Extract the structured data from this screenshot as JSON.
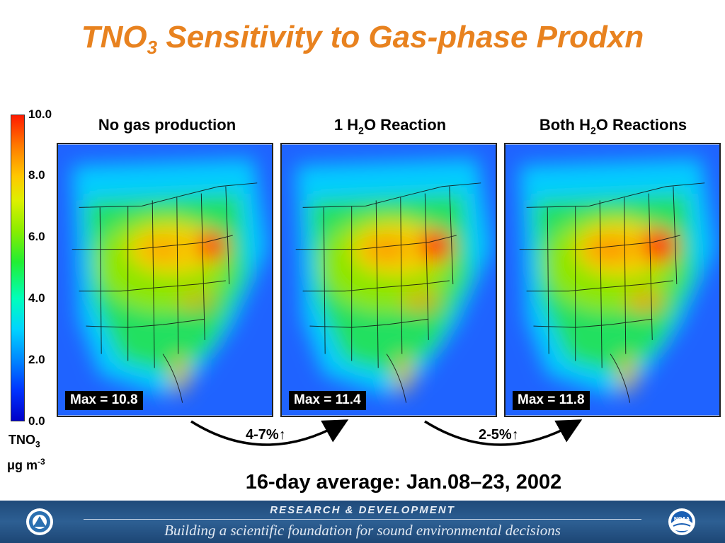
{
  "slide": {
    "title_main": "TNO",
    "title_sub": "3",
    "title_rest": " Sensitivity to Gas-phase Prodxn"
  },
  "colorbar": {
    "ticks": [
      "10.0",
      "8.0",
      "6.0",
      "4.0",
      "2.0",
      "0.0"
    ],
    "unit_line1_main": "TNO",
    "unit_line1_sub": "3",
    "unit_line2_mu": "μ",
    "unit_line2_main": "g m",
    "unit_line2_sup": "-3",
    "colors": [
      "#0000c8",
      "#0088ff",
      "#00ffbb",
      "#22ee33",
      "#ddf000",
      "#ff7a00",
      "#ff1a00"
    ]
  },
  "panels": [
    {
      "label_pre": "No gas production",
      "label_sub": "",
      "label_post": "",
      "max_label": "Max = 10.8"
    },
    {
      "label_pre": "1 H",
      "label_sub": "2",
      "label_post": "O Reaction",
      "max_label": "Max = 11.4"
    },
    {
      "label_pre": "Both H",
      "label_sub": "2",
      "label_post": "O Reactions",
      "max_label": "Max = 11.8"
    }
  ],
  "comparisons": [
    {
      "label": "4-7%↑"
    },
    {
      "label": "2-5%↑"
    }
  ],
  "average_caption": "16-day average: Jan.08–23, 2002",
  "footer": {
    "line1": "RESEARCH & DEVELOPMENT",
    "line2": "Building a scientific foundation for sound environmental decisions",
    "left_logo": "epa-seal-icon",
    "right_logo": "noaa-logo-icon",
    "right_logo_text": "NOAA"
  }
}
